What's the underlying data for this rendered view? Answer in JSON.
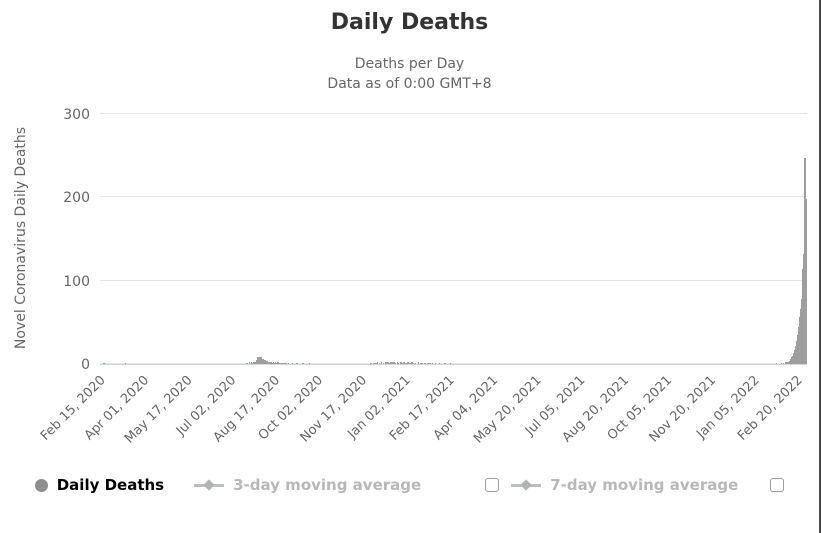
{
  "header": {
    "title": "Daily Deaths",
    "subtitle_line1": "Deaths per Day",
    "subtitle_line2": "Data as of 0:00 GMT+8"
  },
  "legend": {
    "items": [
      {
        "label": "Daily Deaths",
        "marker": "circle",
        "has_checkbox": false,
        "checked": null,
        "active": true
      },
      {
        "label": "3-day moving average",
        "marker": "diamond-line",
        "has_checkbox": true,
        "checked": false,
        "active": false
      },
      {
        "label": "7-day moving average",
        "marker": "diamond-line",
        "has_checkbox": true,
        "checked": false,
        "active": false
      }
    ]
  },
  "chart_data": {
    "type": "bar",
    "title": "Daily Deaths",
    "subtitle": [
      "Deaths per Day",
      "Data as of 0:00 GMT+8"
    ],
    "xlabel": "",
    "ylabel": "Novel Coronavirus Daily Deaths",
    "ylim": [
      0,
      300
    ],
    "yticks": [
      0,
      100,
      200,
      300
    ],
    "grid": true,
    "legend_position": "bottom",
    "x_axis_start_date": "2020-02-15",
    "x_axis_end_date": "2022-03-02",
    "xticks": [
      "Feb 15, 2020",
      "Apr 01, 2020",
      "May 17, 2020",
      "Jul 02, 2020",
      "Aug 17, 2020",
      "Oct 02, 2020",
      "Nov 17, 2020",
      "Jan 02, 2021",
      "Feb 17, 2021",
      "Apr 04, 2021",
      "May 20, 2021",
      "Jul 05, 2021",
      "Aug 20, 2021",
      "Oct 05, 2021",
      "Nov 20, 2021",
      "Jan 05, 2022",
      "Feb 20, 2022"
    ],
    "colors": {
      "bar": "#9e9e9e",
      "gridline": "#e6e6e6",
      "axis_line": "#ccd6eb",
      "title_text": "#333333",
      "subtitle_text": "#666666",
      "axis_text": "#666666",
      "legend_active_text": "#000000",
      "legend_inactive_text": "#b8b8b8"
    },
    "series": [
      {
        "name": "Daily Deaths",
        "visible": true,
        "points": [
          [
            "2020-02-19",
            1
          ],
          [
            "2020-03-13",
            1
          ],
          [
            "2020-07-19",
            1
          ],
          [
            "2020-07-22",
            2
          ],
          [
            "2020-07-24",
            2
          ],
          [
            "2020-07-25",
            1
          ],
          [
            "2020-07-26",
            2
          ],
          [
            "2020-07-27",
            2
          ],
          [
            "2020-07-28",
            3
          ],
          [
            "2020-07-29",
            5
          ],
          [
            "2020-07-30",
            8
          ],
          [
            "2020-07-31",
            9
          ],
          [
            "2020-08-01",
            6
          ],
          [
            "2020-08-02",
            8
          ],
          [
            "2020-08-03",
            9
          ],
          [
            "2020-08-04",
            5
          ],
          [
            "2020-08-05",
            6
          ],
          [
            "2020-08-06",
            4
          ],
          [
            "2020-08-07",
            5
          ],
          [
            "2020-08-08",
            3
          ],
          [
            "2020-08-09",
            4
          ],
          [
            "2020-08-10",
            2
          ],
          [
            "2020-08-11",
            3
          ],
          [
            "2020-08-12",
            2
          ],
          [
            "2020-08-13",
            2
          ],
          [
            "2020-08-14",
            3
          ],
          [
            "2020-08-15",
            1
          ],
          [
            "2020-08-16",
            2
          ],
          [
            "2020-08-17",
            1
          ],
          [
            "2020-08-18",
            2
          ],
          [
            "2020-08-19",
            1
          ],
          [
            "2020-08-20",
            1
          ],
          [
            "2020-08-21",
            2
          ],
          [
            "2020-08-22",
            1
          ],
          [
            "2020-08-23",
            1
          ],
          [
            "2020-08-25",
            1
          ],
          [
            "2020-08-27",
            1
          ],
          [
            "2020-08-29",
            1
          ],
          [
            "2020-09-01",
            1
          ],
          [
            "2020-09-05",
            1
          ],
          [
            "2020-09-10",
            1
          ],
          [
            "2020-09-16",
            1
          ],
          [
            "2020-09-23",
            1
          ],
          [
            "2020-11-27",
            1
          ],
          [
            "2020-11-30",
            1
          ],
          [
            "2020-12-02",
            1
          ],
          [
            "2020-12-04",
            2
          ],
          [
            "2020-12-06",
            1
          ],
          [
            "2020-12-08",
            2
          ],
          [
            "2020-12-10",
            1
          ],
          [
            "2020-12-12",
            2
          ],
          [
            "2020-12-13",
            3
          ],
          [
            "2020-12-15",
            2
          ],
          [
            "2020-12-16",
            1
          ],
          [
            "2020-12-18",
            2
          ],
          [
            "2020-12-19",
            1
          ],
          [
            "2020-12-20",
            2
          ],
          [
            "2020-12-22",
            3
          ],
          [
            "2020-12-23",
            1
          ],
          [
            "2020-12-25",
            2
          ],
          [
            "2020-12-26",
            1
          ],
          [
            "2020-12-28",
            2
          ],
          [
            "2020-12-29",
            3
          ],
          [
            "2020-12-30",
            1
          ],
          [
            "2021-01-01",
            2
          ],
          [
            "2021-01-03",
            1
          ],
          [
            "2021-01-05",
            2
          ],
          [
            "2021-01-07",
            1
          ],
          [
            "2021-01-09",
            2
          ],
          [
            "2021-01-11",
            1
          ],
          [
            "2021-01-13",
            1
          ],
          [
            "2021-01-16",
            2
          ],
          [
            "2021-01-18",
            1
          ],
          [
            "2021-01-20",
            1
          ],
          [
            "2021-01-23",
            1
          ],
          [
            "2021-01-26",
            1
          ],
          [
            "2021-01-28",
            1
          ],
          [
            "2021-01-31",
            1
          ],
          [
            "2021-02-03",
            1
          ],
          [
            "2021-02-07",
            1
          ],
          [
            "2021-02-13",
            1
          ],
          [
            "2021-02-19",
            1
          ],
          [
            "2022-01-29",
            1
          ],
          [
            "2022-02-03",
            1
          ],
          [
            "2022-02-05",
            1
          ],
          [
            "2022-02-08",
            2
          ],
          [
            "2022-02-10",
            3
          ],
          [
            "2022-02-11",
            2
          ],
          [
            "2022-02-12",
            4
          ],
          [
            "2022-02-13",
            6
          ],
          [
            "2022-02-14",
            8
          ],
          [
            "2022-02-15",
            10
          ],
          [
            "2022-02-16",
            13
          ],
          [
            "2022-02-17",
            17
          ],
          [
            "2022-02-18",
            22
          ],
          [
            "2022-02-19",
            28
          ],
          [
            "2022-02-20",
            35
          ],
          [
            "2022-02-21",
            45
          ],
          [
            "2022-02-22",
            56
          ],
          [
            "2022-02-23",
            66
          ],
          [
            "2022-02-24",
            78
          ],
          [
            "2022-02-25",
            84
          ],
          [
            "2022-02-26",
            114
          ],
          [
            "2022-02-27",
            132
          ],
          [
            "2022-02-28",
            247
          ],
          [
            "2022-03-01",
            198
          ]
        ]
      },
      {
        "name": "3-day moving average",
        "visible": false,
        "points": []
      },
      {
        "name": "7-day moving average",
        "visible": false,
        "points": []
      }
    ]
  }
}
